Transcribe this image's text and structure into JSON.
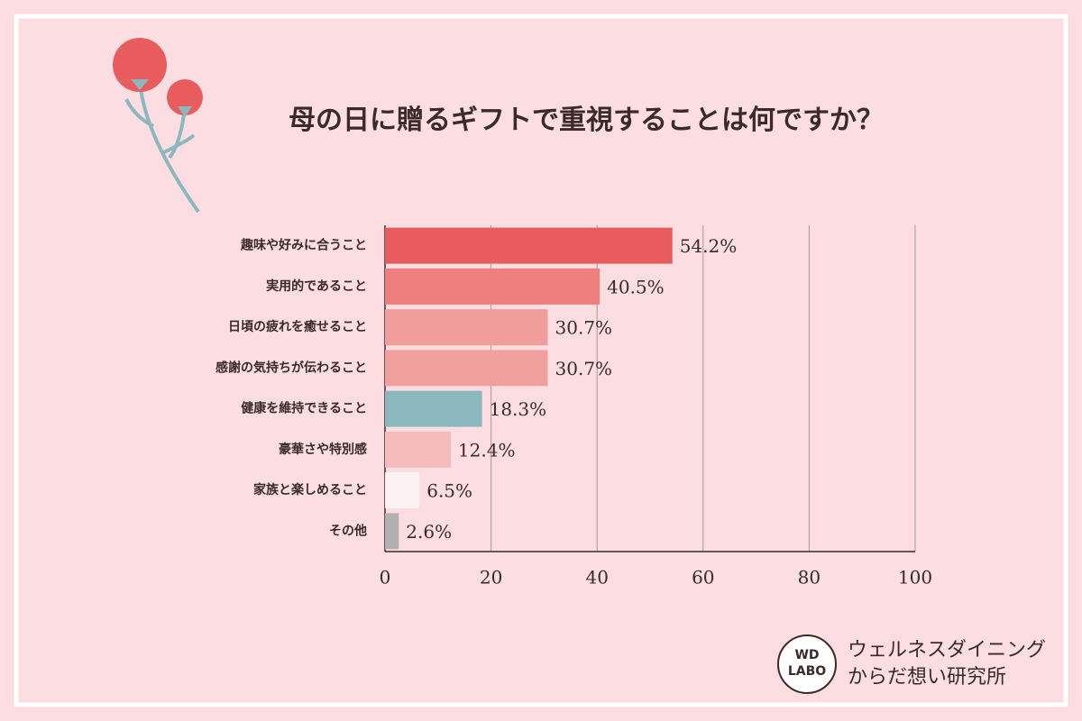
{
  "chart_data": {
    "type": "hbar",
    "title": "母の日に贈るギフトで重視することは何ですか？",
    "categories": [
      "趣味や好みに合うこと",
      "実用的であること",
      "日頃の疲れを癒せること",
      "感謝の気持ちが伝わること",
      "健康を維持できること",
      "豪華さや特別感",
      "家族と楽しめること",
      "その他"
    ],
    "values": [
      54.2,
      40.5,
      30.7,
      30.7,
      18.3,
      12.4,
      6.5,
      2.6
    ],
    "value_labels": [
      "54.2%",
      "40.5%",
      "30.7%",
      "30.7%",
      "18.3%",
      "12.4%",
      "6.5%",
      "2.6%"
    ],
    "colors": [
      "#e85c5e",
      "#ee7f7c",
      "#f09d9c",
      "#f0a09d",
      "#8bb8be",
      "#f4bcbb",
      "#fbf3f3",
      "#b0b0b0"
    ],
    "xlim": [
      0,
      100
    ],
    "xticks": [
      0,
      20,
      40,
      60,
      80,
      100
    ],
    "grid": true
  },
  "brand": {
    "logo_line1": "WD",
    "logo_line2": "LABO",
    "name_line1": "ウェルネスダイニング",
    "name_line2": "からだ想い研究所"
  }
}
